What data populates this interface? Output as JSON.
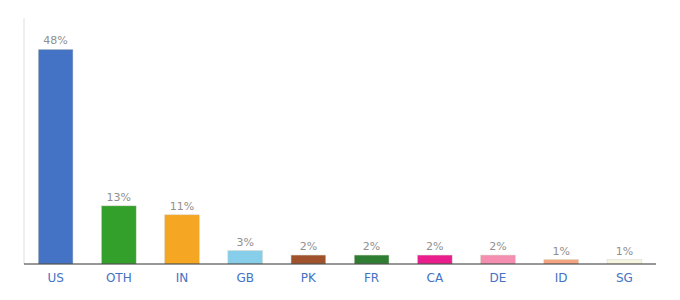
{
  "chart_data": {
    "type": "bar",
    "categories": [
      "US",
      "OTH",
      "IN",
      "GB",
      "PK",
      "FR",
      "CA",
      "DE",
      "ID",
      "SG"
    ],
    "values": [
      48,
      13,
      11,
      3,
      2,
      2,
      2,
      2,
      1,
      1
    ],
    "value_labels": [
      "48%",
      "13%",
      "11%",
      "3%",
      "2%",
      "2%",
      "2%",
      "2%",
      "1%",
      "1%"
    ],
    "colors": [
      "#4472c4",
      "#33a02c",
      "#f5a623",
      "#87ceeb",
      "#a0522d",
      "#2e7d32",
      "#e91e8c",
      "#f48fb1",
      "#f4a482",
      "#f5f5e0"
    ],
    "ylim": [
      0,
      55
    ],
    "data_labels": true,
    "grid": false,
    "tick_labels": "x"
  }
}
